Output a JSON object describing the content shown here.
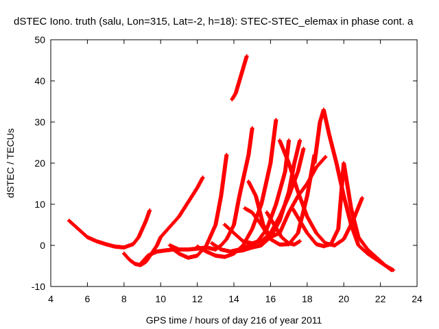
{
  "chart_data": {
    "type": "scatter",
    "title": "dSTEC Iono. truth (salu, Lon=315, Lat=-2, h=18): STEC-STEC_elemax in phase cont. a",
    "xlabel": "GPS time / hours of day 216 of year 2011",
    "ylabel": "dSTEC  / TECUs",
    "xlim": [
      4,
      24
    ],
    "ylim": [
      -10,
      50
    ],
    "x_ticks": [
      "4",
      "6",
      "8",
      "10",
      "12",
      "14",
      "16",
      "18",
      "20",
      "22",
      "24"
    ],
    "y_ticks": [
      "-10",
      "0",
      "10",
      "20",
      "30",
      "40",
      "50"
    ],
    "grid": false,
    "legend": "none",
    "marker": "plus",
    "color": "#ff0000",
    "series": [
      {
        "x": [
          5.0,
          5.5,
          6.0,
          6.5,
          7.0,
          7.5,
          8.0,
          8.5,
          8.8,
          9.0,
          9.2,
          9.4
        ],
        "y": [
          6,
          4,
          2,
          1,
          0.3,
          -0.3,
          -0.5,
          0.3,
          2,
          4,
          6,
          8.5
        ]
      },
      {
        "x": [
          8.0,
          8.3,
          8.6,
          8.9,
          9.2,
          9.5,
          9.8,
          10.0,
          10.5,
          11.0,
          11.5,
          12.0,
          12.3
        ],
        "y": [
          -2,
          -3.5,
          -4.5,
          -4.8,
          -4,
          -2,
          0,
          2,
          4.5,
          7,
          10.5,
          14,
          16.5
        ]
      },
      {
        "x": [
          8.9,
          9.3,
          9.8,
          10.3,
          10.7,
          11.0,
          11.5,
          12.0,
          12.5,
          13.0,
          13.3,
          13.6
        ],
        "y": [
          -4.5,
          -2.5,
          -1.5,
          -1.2,
          -1,
          -2,
          -3,
          -2.5,
          0,
          5,
          12,
          22
        ]
      },
      {
        "x": [
          10.5,
          11.0,
          11.5,
          12.0,
          12.5,
          13.0,
          13.3,
          13.6,
          14.0,
          14.3,
          14.8,
          15.0
        ],
        "y": [
          0,
          -1,
          -1,
          -0.8,
          -0.5,
          -1,
          0,
          1.5,
          5,
          12,
          22,
          28.5
        ]
      },
      {
        "x": [
          13.9,
          14.1,
          14.3,
          14.5,
          14.7
        ],
        "y": [
          35.5,
          37,
          40,
          43,
          46
        ]
      },
      {
        "x": [
          12.0,
          12.5,
          13.0,
          13.5,
          14.0,
          14.5,
          15.0,
          15.5,
          16.0,
          16.3
        ],
        "y": [
          -0.3,
          -1.5,
          -2.5,
          -2.8,
          -2,
          0,
          4,
          10,
          20,
          30.5
        ]
      },
      {
        "x": [
          12.8,
          13.3,
          13.8,
          14.3,
          14.8,
          15.3,
          15.8,
          16.3,
          16.8,
          17.0
        ],
        "y": [
          0.5,
          -1,
          -1.5,
          -1,
          0,
          1,
          4,
          10,
          18,
          25.5
        ]
      },
      {
        "x": [
          14.0,
          14.5,
          15.0,
          15.5,
          16.0,
          16.5,
          17.0,
          17.3,
          17.6
        ],
        "y": [
          -1.5,
          -1.2,
          -0.5,
          0,
          2,
          6,
          13,
          20,
          25.5
        ]
      },
      {
        "x": [
          13.5,
          14.0,
          14.5,
          15.0,
          15.5,
          16.0,
          16.5,
          17.0,
          17.5,
          17.8
        ],
        "y": [
          5,
          3,
          1,
          0.5,
          1,
          3,
          7,
          12,
          18,
          23.5
        ]
      },
      {
        "x": [
          14.6,
          15.0,
          15.5,
          16.0,
          16.5,
          17.0,
          17.5,
          18.0,
          18.4
        ],
        "y": [
          9,
          8,
          5,
          1.5,
          0.2,
          0.3,
          3,
          12,
          22
        ]
      },
      {
        "x": [
          14.8,
          15.2,
          15.6,
          16.0,
          16.5,
          17.0,
          17.5,
          18.0,
          18.5,
          19.0
        ],
        "y": [
          15.5,
          12,
          5,
          2,
          3,
          8,
          12,
          15,
          19,
          21.5
        ]
      },
      {
        "x": [
          15.8,
          16.2,
          16.6,
          17.0,
          17.3,
          17.6
        ],
        "y": [
          8,
          5,
          2,
          0.5,
          0.2,
          1
        ]
      },
      {
        "x": [
          16.5,
          17.0,
          17.5,
          18.0,
          18.5,
          19.0,
          19.5,
          20.0,
          20.5,
          21.0
        ],
        "y": [
          25.5,
          20,
          13,
          7,
          3,
          0.5,
          0,
          1.5,
          6,
          11.5
        ]
      },
      {
        "x": [
          17.2,
          17.6,
          18.0,
          18.5,
          18.9,
          19.3,
          19.7,
          20.0,
          20.4,
          20.8,
          21.3,
          21.8,
          22.3,
          22.6
        ],
        "y": [
          9,
          6,
          3,
          0.3,
          -0.2,
          0.3,
          4,
          20,
          9,
          2,
          -1,
          -3,
          -5,
          -6
        ]
      },
      {
        "x": [
          18.4,
          18.7,
          18.9,
          19.2,
          19.6,
          20.0,
          20.4,
          20.8,
          21.3,
          21.8,
          22.3,
          22.7
        ],
        "y": [
          20,
          30,
          33,
          27,
          20,
          12,
          5,
          0,
          -2,
          -3.5,
          -5,
          -6
        ]
      }
    ]
  }
}
